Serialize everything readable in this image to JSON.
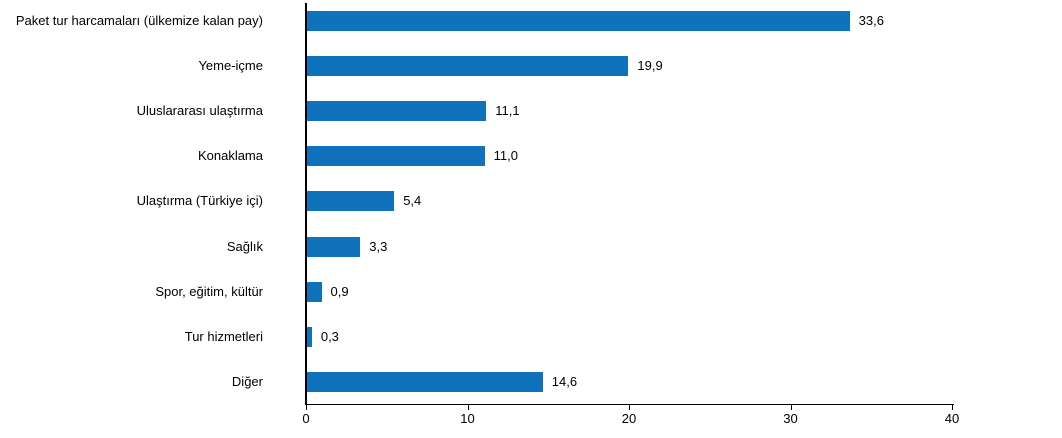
{
  "chart_data": {
    "type": "bar",
    "orientation": "horizontal",
    "title": "",
    "xlabel": "",
    "ylabel": "",
    "categories": [
      "Paket tur harcamaları (ülkemize kalan pay)",
      "Yeme-içme",
      "Uluslararası ulaştırma",
      "Konaklama",
      "Ulaştırma (Türkiye içi)",
      "Sağlık",
      "Spor, eğitim, kültür",
      "Tur hizmetleri",
      "Diğer"
    ],
    "values": [
      33.6,
      19.9,
      11.1,
      11.0,
      5.4,
      3.3,
      0.9,
      0.3,
      14.6
    ],
    "value_labels": [
      "33,6",
      "19,9",
      "11,1",
      "11,0",
      "5,4",
      "3,3",
      "0,9",
      "0,3",
      "14,6"
    ],
    "xlim": [
      0,
      40
    ],
    "x_ticks": [
      "0",
      "10",
      "20",
      "30",
      "40"
    ],
    "x_tick_values": [
      0,
      10,
      20,
      30,
      40
    ],
    "grid": false,
    "legend": false,
    "bar_color": "#1172bc",
    "axis_color": "#000000",
    "text_color": "#000000"
  }
}
